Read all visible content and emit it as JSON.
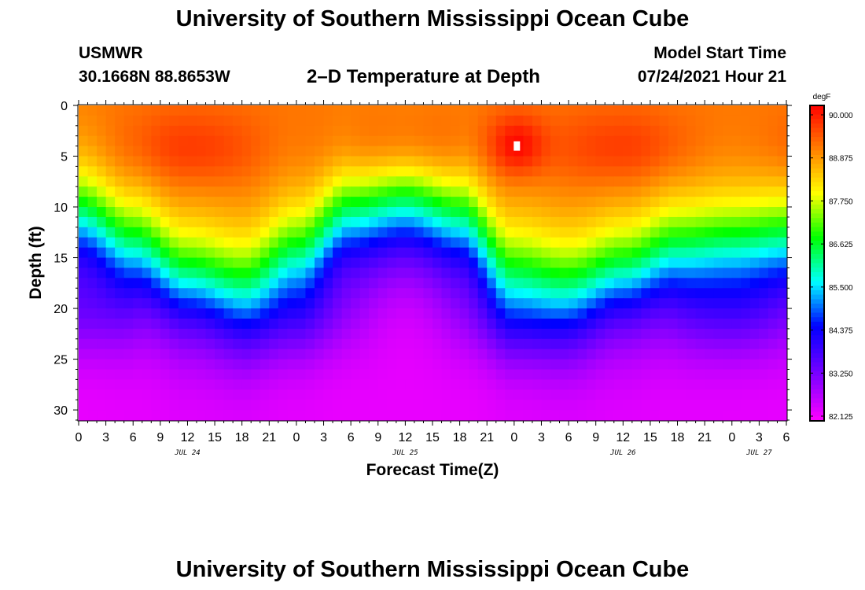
{
  "header": {
    "title": "University of Southern Mississippi Ocean Cube",
    "station": "USMWR",
    "coords": "30.1668N  88.8653W",
    "plot_title": "2–D Temperature at Depth",
    "start_label": "Model Start Time",
    "start_value": "07/24/2021 Hour 21"
  },
  "footer": {
    "title": "University of Southern Mississippi Ocean Cube"
  },
  "chart_data": {
    "type": "heatmap",
    "title": "2–D Temperature at Depth",
    "xlabel": "Forecast Time(Z)",
    "ylabel": "Depth (ft)",
    "x_ticks": [
      "0",
      "3",
      "6",
      "9",
      "12",
      "15",
      "18",
      "21",
      "0",
      "3",
      "6",
      "9",
      "12",
      "15",
      "18",
      "21",
      "0",
      "3",
      "6",
      "9",
      "12",
      "15",
      "18",
      "21",
      "0",
      "3",
      "6"
    ],
    "x_range_hours": [
      0,
      78
    ],
    "date_labels": [
      {
        "text": "JUL 24",
        "hour": 12
      },
      {
        "text": "JUL 25",
        "hour": 36
      },
      {
        "text": "JUL 26",
        "hour": 60
      },
      {
        "text": "JUL 27",
        "hour": 75
      }
    ],
    "y_ticks": [
      0,
      5,
      10,
      15,
      20,
      25,
      30
    ],
    "ylim": [
      0,
      31
    ],
    "y_inverted": true,
    "colorbar": {
      "unit": "degF",
      "min": 82.125,
      "max": 90.0,
      "labels": [
        "90.000",
        "88.875",
        "87.750",
        "86.625",
        "85.500",
        "84.375",
        "83.250",
        "82.125"
      ]
    },
    "thermocline_depth_ft": {
      "hours": [
        0,
        6,
        12,
        18,
        24,
        30,
        36,
        42,
        48,
        54,
        60,
        66,
        72,
        78
      ],
      "depth": [
        11.5,
        14.5,
        17.5,
        18.5,
        15.5,
        11.5,
        10.5,
        12.0,
        17.5,
        18.5,
        17.0,
        15.0,
        14.5,
        14.0
      ]
    },
    "surface_temp_degF": 89.0,
    "bottom_temp_degF": 82.3,
    "max_temp": {
      "value_degF": 90.1,
      "hour": 48.3,
      "depth_ft": 4
    }
  }
}
